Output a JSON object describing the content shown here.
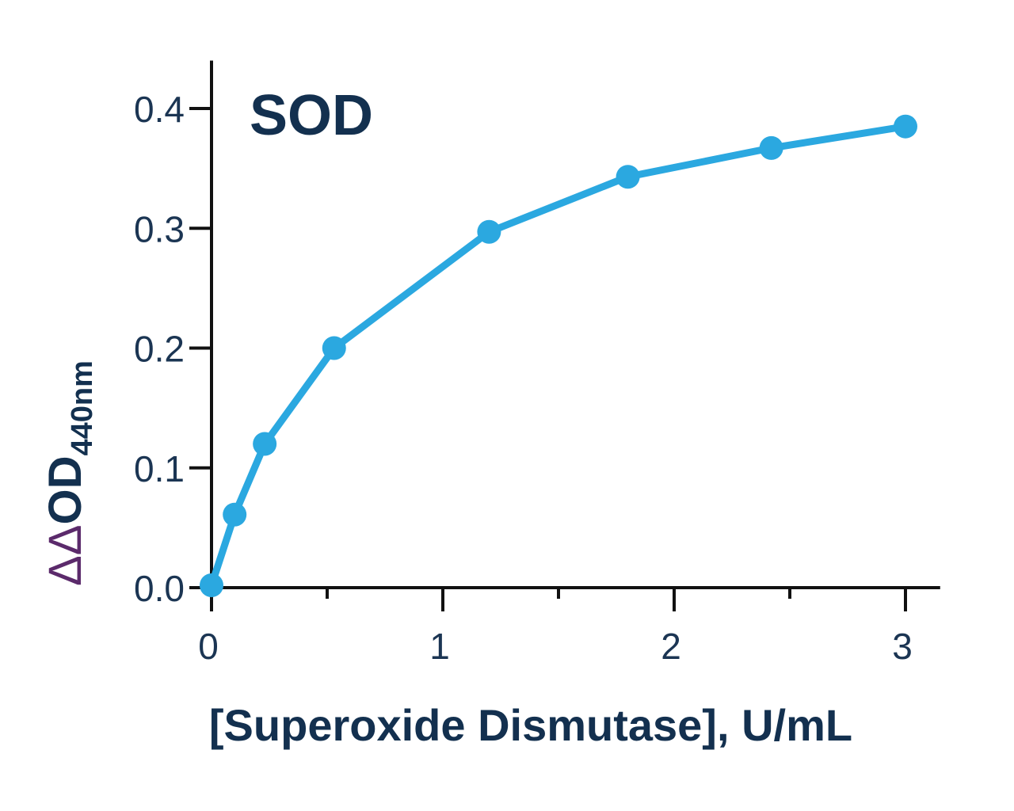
{
  "chart_data": {
    "type": "line",
    "title": "SOD",
    "xlabel": "[Superoxide Dismutase], U/mL",
    "ylabel": {
      "delta": "ΔΔ",
      "main": "OD",
      "subscript": "440nm"
    },
    "xlim": [
      0,
      3.15
    ],
    "ylim": [
      0,
      0.44
    ],
    "x_ticks": [
      0,
      1,
      2,
      3
    ],
    "x_tick_labels": [
      "0",
      "1",
      "2",
      "3"
    ],
    "x_minor_ticks": [
      0.5,
      1.5,
      2.5
    ],
    "y_ticks": [
      0,
      0.1,
      0.2,
      0.3,
      0.4
    ],
    "y_tick_labels": [
      "0.0",
      "0.1",
      "0.2",
      "0.3",
      "0.4"
    ],
    "grid": false,
    "legend": "none",
    "series": [
      {
        "color": "#2ba8e0",
        "x": [
          0,
          0.1,
          0.23,
          0.53,
          1.2,
          1.8,
          2.42,
          3.0
        ],
        "y": [
          0.002,
          0.061,
          0.12,
          0.2,
          0.297,
          0.343,
          0.367,
          0.385
        ]
      }
    ],
    "colors": {
      "axis": "#111111",
      "text": "#1b3553",
      "title": "#13304f",
      "delta": "#5b2a6b"
    }
  }
}
